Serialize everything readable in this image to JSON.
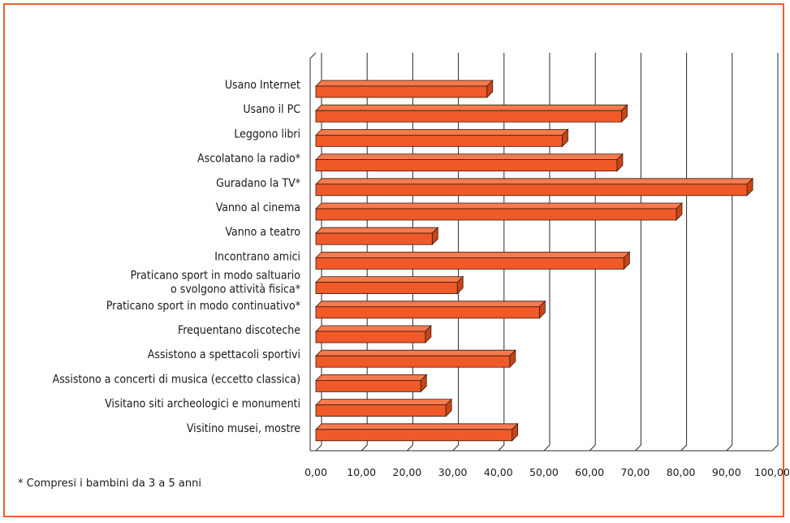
{
  "chart_data": {
    "type": "bar",
    "orientation": "horizontal",
    "style": "3d",
    "bar_color": "#f05a28",
    "bar_edge_color": "#3a1a0c",
    "frame_color": "#e8612c",
    "grid": true,
    "xlim": [
      0,
      100
    ],
    "x_ticks": [
      "0,00",
      "10,00",
      "20,00",
      "30,00",
      "40,00",
      "50,00",
      "60,00",
      "70,00",
      "80,00",
      "90,00",
      "100,00"
    ],
    "categories": [
      [
        "Usano Internet"
      ],
      [
        "Usano il PC"
      ],
      [
        "Leggono libri"
      ],
      [
        "Ascolatano la radio*"
      ],
      [
        "Guradano la TV*"
      ],
      [
        "Vanno al cinema"
      ],
      [
        "Vanno a teatro"
      ],
      [
        "Incontrano amici"
      ],
      [
        "Praticano sport in modo saltuario",
        "o svolgono attività fisica*"
      ],
      [
        "Praticano sport in modo continuativo*"
      ],
      [
        "Frequentano discoteche"
      ],
      [
        "Assistono a spettacoli sportivi"
      ],
      [
        "Assistono a concerti di musica (eccetto classica)"
      ],
      [
        "Visitano siti archeologici e monumenti"
      ],
      [
        "Visitino musei, mostre"
      ]
    ],
    "values": [
      37.5,
      67,
      54,
      66,
      94.5,
      79,
      25.5,
      67.5,
      31,
      49,
      24,
      42.5,
      23,
      28.5,
      43
    ]
  },
  "footnote": "* Compresi i bambini da 3 a 5 anni"
}
